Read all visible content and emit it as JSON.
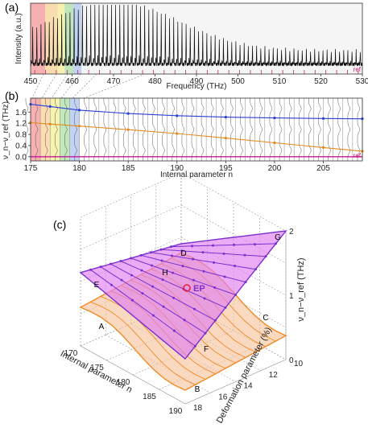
{
  "chart_data": [
    {
      "panel": "(a)",
      "type": "line",
      "xlabel": "Frequency (THz)",
      "ylabel": "Intensity (a.u.)",
      "xlim": [
        450,
        530
      ],
      "xticks": [
        "450",
        "460",
        "470",
        "480",
        "490",
        "500",
        "510",
        "520",
        "530"
      ],
      "ref_label": "ref",
      "highlight_bands": [
        {
          "x": [
            450,
            453.5
          ],
          "color": "#f4a5a5"
        },
        {
          "x": [
            453.5,
            456.5
          ],
          "color": "#f9d7a3"
        },
        {
          "x": [
            456.5,
            458.2
          ],
          "color": "#f5f1a3"
        },
        {
          "x": [
            458.2,
            460.3
          ],
          "color": "#b8e3b0"
        },
        {
          "x": [
            460.3,
            462.3
          ],
          "color": "#b7cdf0"
        }
      ],
      "peak_count": 80
    },
    {
      "panel": "(b)",
      "type": "line",
      "xlabel": "Internal parameter n",
      "ylabel": "ν_n−ν_ref (THz)",
      "xlim": [
        175,
        209
      ],
      "ylim": [
        -0.15,
        2.1
      ],
      "xticks": [
        "175",
        "180",
        "185",
        "190",
        "195",
        "200",
        "205"
      ],
      "yticks": [
        "0.0",
        "0.4",
        "0.8",
        "1.2",
        "1.6"
      ],
      "ref_label": "ref",
      "series": [
        {
          "color": "#2b3ed6",
          "x": [
            175,
            177,
            180,
            185,
            190,
            195,
            200,
            205,
            209
          ],
          "y": [
            1.88,
            1.8,
            1.67,
            1.55,
            1.47,
            1.42,
            1.39,
            1.37,
            1.36
          ]
        },
        {
          "color": "#e28a1d",
          "x": [
            175,
            177,
            180,
            185,
            190,
            195,
            200,
            205,
            209
          ],
          "y": [
            1.22,
            1.17,
            1.1,
            0.97,
            0.83,
            0.67,
            0.5,
            0.33,
            0.2
          ]
        },
        {
          "color": "#c2189a",
          "x": [
            175,
            209
          ],
          "y": [
            0.0,
            0.0
          ]
        }
      ]
    },
    {
      "panel": "(c)",
      "type": "surface3d",
      "xlabel": "Internal parameter n",
      "ylabel": "Deformation parameter (%)",
      "zlabel": "ν_n−ν_ref (THz)",
      "xticks": [
        "170",
        "175",
        "180",
        "185",
        "190"
      ],
      "yticks": [
        "10",
        "12",
        "14",
        "16",
        "18"
      ],
      "zticks": [
        "0",
        "1",
        "2"
      ],
      "point_labels": [
        "A",
        "B",
        "C",
        "D",
        "E",
        "F",
        "G",
        "H"
      ],
      "ep_label": "EP",
      "colors": {
        "upper": "#7b2fd1",
        "lower": "#f08a24",
        "upper_fill": "#e07ff0",
        "lower_fill": "#f7c59f",
        "ep": "#e8203c"
      }
    }
  ]
}
